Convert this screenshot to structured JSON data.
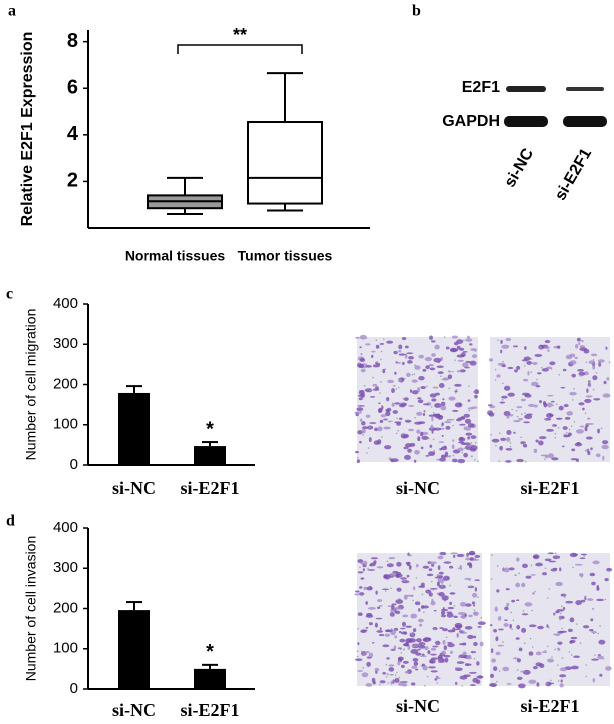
{
  "panel_labels": [
    "a",
    "b",
    "c",
    "d"
  ],
  "chart_data": [
    {
      "type": "box",
      "ylabel": "Relative E2F1 Expression",
      "categories": [
        "Normal tissues",
        "Tumor tissues"
      ],
      "boxes": [
        {
          "min": 0.6,
          "q1": 0.85,
          "median": 1.15,
          "q3": 1.4,
          "max": 2.15,
          "color": "#999999"
        },
        {
          "min": 0.75,
          "q1": 1.05,
          "median": 2.15,
          "q3": 4.55,
          "max": 6.65,
          "color": "#ffffff"
        }
      ],
      "ylim": [
        0,
        8.5
      ],
      "yticks": [
        2,
        4,
        6,
        8
      ],
      "significance": "**"
    },
    {
      "type": "bar",
      "ylabel": "Number of cell migration",
      "categories": [
        "si-NC",
        "si-E2F1"
      ],
      "values": [
        179,
        47
      ],
      "errors": [
        17,
        10
      ],
      "color": "#000000",
      "ylim": [
        0,
        400
      ],
      "yticks": [
        0,
        100,
        200,
        300,
        400
      ],
      "significance": "*"
    },
    {
      "type": "bar",
      "ylabel": "Number of cell invasion",
      "categories": [
        "si-NC",
        "si-E2F1"
      ],
      "values": [
        196,
        50
      ],
      "errors": [
        20,
        10
      ],
      "color": "#000000",
      "ylim": [
        0,
        400
      ],
      "yticks": [
        0,
        100,
        200,
        300,
        400
      ],
      "significance": "*"
    }
  ],
  "blot": {
    "bands": [
      "E2F1",
      "GAPDH"
    ],
    "lanes": [
      "si-NC",
      "si-E2F1"
    ]
  },
  "micrographs": [
    {
      "labels": [
        "si-NC",
        "si-E2F1"
      ]
    },
    {
      "labels": [
        "si-NC",
        "si-E2F1"
      ]
    }
  ]
}
